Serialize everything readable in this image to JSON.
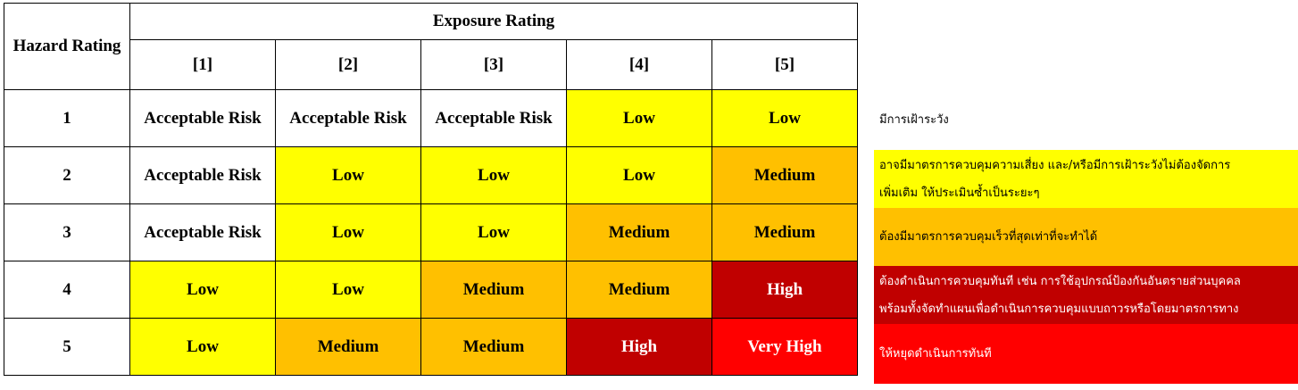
{
  "matrix": {
    "hazard_header": "Hazard Rating",
    "exposure_header": "Exposure Rating",
    "exposure_levels": [
      "[1]",
      "[2]",
      "[3]",
      "[4]",
      "[5]"
    ],
    "rows": [
      {
        "hazard": "1",
        "cells": [
          "Acceptable Risk",
          "Acceptable Risk",
          "Acceptable Risk",
          "Low",
          "Low"
        ]
      },
      {
        "hazard": "2",
        "cells": [
          "Acceptable Risk",
          "Low",
          "Low",
          "Low",
          "Medium"
        ]
      },
      {
        "hazard": "3",
        "cells": [
          "Acceptable Risk",
          "Low",
          "Low",
          "Medium",
          "Medium"
        ]
      },
      {
        "hazard": "4",
        "cells": [
          "Low",
          "Low",
          "Medium",
          "Medium",
          "High"
        ]
      },
      {
        "hazard": "5",
        "cells": [
          "Low",
          "Medium",
          "Medium",
          "High",
          "Very High"
        ]
      }
    ]
  },
  "colors": {
    "Acceptable Risk": "#ffffff",
    "Low": "#ffff00",
    "Medium": "#ffc000",
    "High": "#c00000",
    "Very High": "#ff0000"
  },
  "legend": [
    {
      "level": "Acceptable Risk",
      "lines": [
        "มีการเฝ้าระวัง"
      ]
    },
    {
      "level": "Low",
      "lines": [
        "อาจมีมาตรการควบคุมความเสี่ยง และ/หรือมีการเฝ้าระวังไม่ต้องจัดการ",
        "เพิ่มเติม ให้ประเมินซ้ำเป็นระยะๆ"
      ]
    },
    {
      "level": "Medium",
      "lines": [
        "ต้องมีมาตรการควบคุมเร็วที่สุดเท่าที่จะทำได้"
      ]
    },
    {
      "level": "High",
      "lines": [
        "ต้องดำเนินการควบคุมทันที เช่น การใช้อุปกรณ์ป้องกันอันตรายส่วนบุคคล",
        "พร้อมทั้งจัดทำแผนเพื่อดำเนินการควบคุมแบบถาวรหรือโดยมาตรการทาง"
      ]
    },
    {
      "level": "Very High",
      "lines": [
        "ให้หยุดดำเนินการทันที"
      ]
    }
  ]
}
